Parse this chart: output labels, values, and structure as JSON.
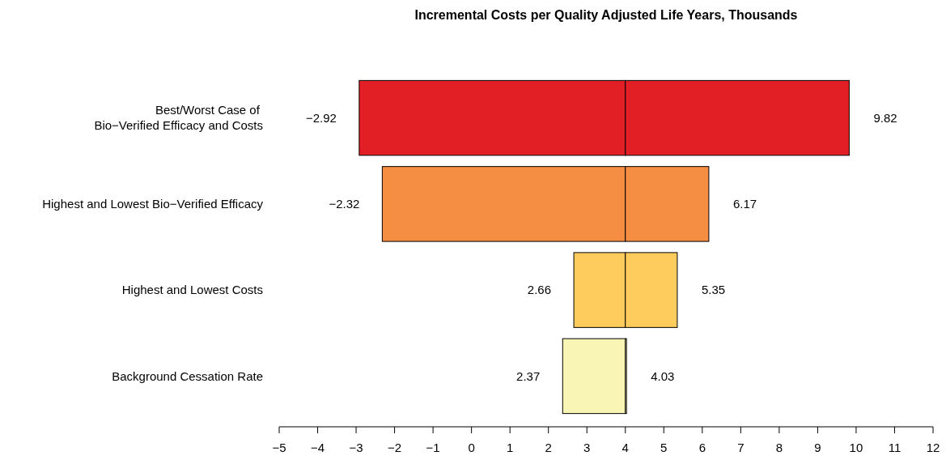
{
  "chart_data": {
    "type": "bar",
    "orientation": "horizontal",
    "title": "Incremental Costs per Quality Adjusted Life Years, Thousands",
    "categories": [
      "Best/Worst Case of \nBio−Verified Efficacy and Costs",
      "Highest and Lowest Bio−Verified Efficacy",
      "Highest and Lowest Costs",
      "Background Cessation Rate"
    ],
    "series": [
      {
        "colors": [
          "#e31f26",
          "#f58d42",
          "#fdcc5c",
          "#f9f5b4"
        ],
        "base": [
          -2.92,
          -2.32,
          2.66,
          2.37
        ],
        "values": [
          6.92,
          6.32,
          1.34,
          1.63
        ]
      },
      {
        "colors": [
          "#e31f26",
          "#f58d42",
          "#fdcc5c",
          "#f9f5b4"
        ],
        "base": [
          4,
          4,
          4,
          4
        ],
        "values": [
          5.82,
          2.17,
          1.35,
          0.03
        ]
      }
    ],
    "xlim": [
      -5,
      12
    ],
    "xticks": [
      -5,
      -4,
      -3,
      -2,
      -1,
      0,
      1,
      2,
      3,
      4,
      5,
      6,
      7,
      8,
      9,
      10,
      11,
      12
    ],
    "annotations": [
      {
        "text": "−2.92",
        "x": -2.92,
        "y": "Best/Worst Case of \nBio−Verified Efficacy and Costs"
      },
      {
        "text": "9.82",
        "x": 9.82,
        "y": "Best/Worst Case of \nBio−Verified Efficacy and Costs"
      },
      {
        "text": "−2.32",
        "x": -2.32,
        "y": "Highest and Lowest Bio−Verified Efficacy"
      },
      {
        "text": "6.17",
        "x": 6.17,
        "y": "Highest and Lowest Bio−Verified Efficacy"
      },
      {
        "text": "2.66",
        "x": 2.66,
        "y": "Highest and Lowest Costs"
      },
      {
        "text": "5.35",
        "x": 5.35,
        "y": "Highest and Lowest Costs"
      },
      {
        "text": "2.37",
        "x": 2.37,
        "y": "Background Cessation Rate"
      },
      {
        "text": "4.03",
        "x": 4.03,
        "y": "Background Cessation Rate"
      }
    ]
  }
}
